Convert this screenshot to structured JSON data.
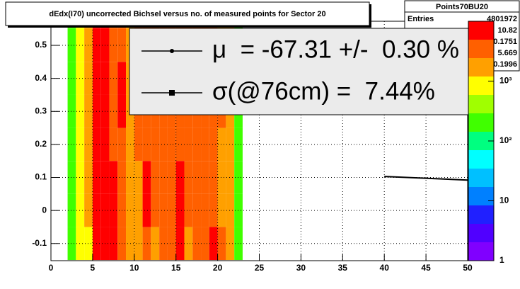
{
  "chart_data": {
    "type": "heatmap",
    "title": "dEdx(I70) uncorrected Bichsel versus no. of measured points for Sector 20",
    "xbins": [
      2,
      3,
      4,
      5,
      6,
      7,
      8,
      9,
      10,
      11,
      12,
      13,
      14,
      15,
      16,
      17,
      18,
      19,
      20,
      21,
      22,
      23
    ],
    "ybins": [
      -0.15,
      -0.05,
      0.05,
      0.15,
      0.25,
      0.35,
      0.45,
      0.55,
      0.65
    ],
    "z": [
      [
        150,
        150,
        150,
        150,
        150,
        150,
        150,
        150
      ],
      [
        1000,
        1000,
        1000,
        1000,
        1000,
        1000,
        1000,
        1000
      ],
      [
        1200,
        1500,
        2500,
        2500,
        2500,
        2500,
        2500,
        2500
      ],
      [
        8000,
        8000,
        8000,
        8000,
        8000,
        8000,
        8000,
        8000
      ],
      [
        8000,
        8000,
        8000,
        8000,
        8000,
        8000,
        8000,
        8000
      ],
      [
        8000,
        8000,
        8000,
        3500,
        3500,
        3500,
        3500,
        3500
      ],
      [
        3500,
        3500,
        3500,
        3500,
        8000,
        8000,
        3500,
        3500
      ],
      [
        3000,
        3000,
        3000,
        3000,
        3000,
        3000,
        3000,
        3000
      ],
      [
        1500,
        2500,
        2500,
        3500,
        3500,
        3500,
        3500,
        3500
      ],
      [
        3500,
        8000,
        8000,
        3500,
        3500,
        3500,
        3500,
        3500
      ],
      [
        2500,
        3500,
        3500,
        3500,
        3500,
        3500,
        3500,
        3500
      ],
      [
        3500,
        3500,
        3500,
        3500,
        3500,
        3500,
        3500,
        3500
      ],
      [
        3500,
        3500,
        3500,
        3500,
        3500,
        3500,
        3500,
        3500
      ],
      [
        8000,
        8000,
        8000,
        3500,
        3500,
        3500,
        3500,
        3500
      ],
      [
        2500,
        3500,
        3500,
        3500,
        3500,
        3500,
        3500,
        3500
      ],
      [
        3500,
        3500,
        3500,
        3500,
        3500,
        3500,
        3500,
        3500
      ],
      [
        3500,
        3500,
        3500,
        3500,
        3500,
        3500,
        3500,
        3500
      ],
      [
        8000,
        3500,
        3500,
        3500,
        3500,
        3500,
        3500,
        3500
      ],
      [
        3500,
        2500,
        2500,
        2500,
        3500,
        2500,
        2500,
        2500
      ],
      [
        1500,
        2500,
        2500,
        2500,
        2500,
        2500,
        1500,
        1500
      ],
      [
        200,
        200,
        200,
        200,
        200,
        200,
        200,
        200
      ]
    ],
    "zlim": [
      1,
      10000
    ],
    "log_z": true,
    "zticks": [
      1,
      10,
      {
        "value": 100,
        "label": "10²"
      },
      {
        "value": 1000,
        "label": "10³"
      }
    ],
    "palette": [
      "#8000ff",
      "#5000ff",
      "#2020ff",
      "#0080ff",
      "#00c0ff",
      "#00ffff",
      "#00ff80",
      "#40ff00",
      "#a0ff00",
      "#ffff00",
      "#ffa000",
      "#ff6000",
      "#ff0000"
    ],
    "xlim": [
      0,
      50
    ],
    "xticks": [
      0,
      5,
      10,
      15,
      20,
      25,
      30,
      35,
      40,
      45,
      50
    ],
    "ylim": [
      -0.152,
      0.573
    ],
    "yticks": [
      -0.1,
      0,
      0.1,
      0.2,
      0.3,
      0.4,
      0.5
    ],
    "grid": true,
    "line": {
      "x": [
        40,
        50
      ],
      "y": [
        0.103,
        0.092
      ],
      "color": "#000000"
    },
    "stats": {
      "name": "Points70BU20",
      "rows": [
        {
          "label": "Entries",
          "value": "4801972"
        },
        {
          "value": "10.82"
        },
        {
          "value": "0.1751"
        },
        {
          "value": "5.669"
        },
        {
          "value": "0.1996"
        }
      ]
    },
    "legend": {
      "entries": [
        "μ  = -67.31 +/-  0.30 %",
        "σ(@76cm) =  7.44%"
      ]
    }
  }
}
